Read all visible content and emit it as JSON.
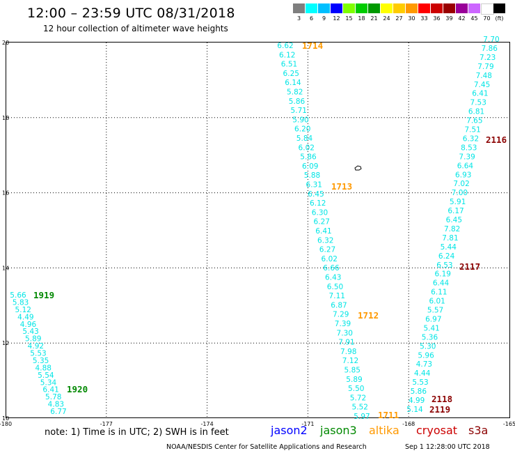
{
  "header": {
    "title": "12:00 – 23:59 UTC 08/31/2018",
    "subtitle": "12 hour collection of altimeter wave heights"
  },
  "scale": {
    "swatches": [
      {
        "color": "#7f7f7f",
        "label": "3"
      },
      {
        "color": "#00ffff",
        "label": "6"
      },
      {
        "color": "#00bfff",
        "label": "9"
      },
      {
        "color": "#0000ff",
        "label": "12"
      },
      {
        "color": "#7fff00",
        "label": "15"
      },
      {
        "color": "#00cc00",
        "label": "18"
      },
      {
        "color": "#009900",
        "label": "21"
      },
      {
        "color": "#ffff00",
        "label": "24"
      },
      {
        "color": "#ffcc00",
        "label": "27"
      },
      {
        "color": "#ff9900",
        "label": "30"
      },
      {
        "color": "#ff0000",
        "label": "33"
      },
      {
        "color": "#cc0000",
        "label": "36"
      },
      {
        "color": "#990000",
        "label": "39"
      },
      {
        "color": "#990099",
        "label": "42"
      },
      {
        "color": "#cc66ff",
        "label": "45"
      },
      {
        "color": "#ffffff",
        "label": "70"
      },
      {
        "color": "#000000",
        "label": "(ft)"
      }
    ]
  },
  "map": {
    "lon_range": [
      -180,
      -165
    ],
    "lat_range": [
      10,
      20
    ],
    "x_ticks": [
      "-180",
      "-177",
      "-174",
      "-171",
      "-168",
      "-165"
    ],
    "y_ticks": [
      "20",
      "18",
      "16",
      "14",
      "12",
      "10"
    ],
    "grid": true,
    "island_symbol": "island-outline-icon"
  },
  "colors": {
    "low": "#00e5e5",
    "mid": "#00aa00",
    "altika": "#ff9900",
    "cryosat": "#8b0000",
    "jason2": "#0000ff",
    "jason3": "#008800"
  },
  "tracks": [
    {
      "name": "track-1919-1920",
      "values": [
        "5.66",
        "5.83",
        "5.12",
        "4.49",
        "4.96",
        "5.43",
        "5.89",
        "4.92",
        "5.53",
        "5.35",
        "4.88",
        "5.54",
        "5.34",
        "6.41",
        "5.78",
        "4.83",
        "6.77"
      ]
    },
    {
      "name": "track-1714-1711",
      "values": [
        "6.62",
        "6.12",
        "6.51",
        "6.25",
        "6.14",
        "5.82",
        "5.86",
        "5.71",
        "5.90",
        "6.20",
        "5.84",
        "6.02",
        "5.86",
        "6.09",
        "5.88",
        "6.31",
        "6.45",
        "6.12",
        "6.30",
        "6.27",
        "6.41",
        "6.32",
        "6.27",
        "6.02",
        "6.66",
        "6.43",
        "6.50",
        "7.11",
        "6.87",
        "7.29",
        "7.39",
        "7.30",
        "7.91",
        "7.98",
        "7.12",
        "5.85",
        "5.89",
        "5.50",
        "5.72",
        "5.52",
        "5.97"
      ]
    },
    {
      "name": "track-2116-2119",
      "values": [
        "7.70",
        "7.86",
        "7.23",
        "7.79",
        "7.48",
        "7.45",
        "6.41",
        "7.53",
        "6.81",
        "7.65",
        "7.51",
        "6.32",
        "8.53",
        "7.39",
        "6.64",
        "6.93",
        "7.02",
        "7.00",
        "5.91",
        "6.17",
        "6.45",
        "7.82",
        "7.81",
        "5.44",
        "6.24",
        "6.53",
        "6.19",
        "6.44",
        "6.11",
        "6.01",
        "5.57",
        "6.97",
        "5.41",
        "5.36",
        "5.30",
        "5.96",
        "4.73",
        "4.44",
        "5.53",
        "5.86",
        "4.99",
        "5.14"
      ]
    }
  ],
  "pass_labels": [
    {
      "text": "1919",
      "sat": "jason3"
    },
    {
      "text": "1920",
      "sat": "jason3"
    },
    {
      "text": "1714",
      "sat": "altika"
    },
    {
      "text": "1713",
      "sat": "altika"
    },
    {
      "text": "1712",
      "sat": "altika"
    },
    {
      "text": "1711",
      "sat": "altika"
    },
    {
      "text": "2116",
      "sat": "cryosat"
    },
    {
      "text": "2117",
      "sat": "cryosat"
    },
    {
      "text": "2118",
      "sat": "cryosat"
    },
    {
      "text": "2119",
      "sat": "cryosat"
    }
  ],
  "note": "note: 1) Time is in UTC; 2) SWH is in feet",
  "legend": [
    {
      "name": "jason2",
      "color": "#0000ff"
    },
    {
      "name": "jason3",
      "color": "#008800"
    },
    {
      "name": "altika",
      "color": "#ff9900"
    },
    {
      "name": "cryosat",
      "color": "#cc0000"
    },
    {
      "name": "s3a",
      "color": "#8b0000"
    }
  ],
  "footer": {
    "left": "NOAA/NESDIS Center for Satellite Applications and Research",
    "right": "Sep  1 12:28:00 UTC 2018"
  }
}
